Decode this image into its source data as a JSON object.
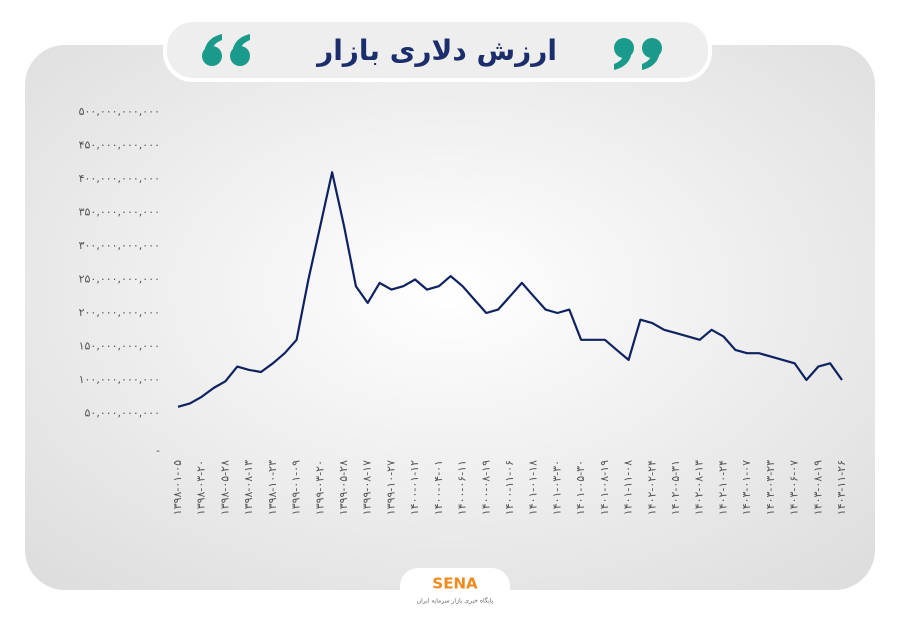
{
  "chart_data": {
    "type": "line",
    "title": "ارزش دلاری بازار",
    "categories": [
      "۱۳۹۸-۰۱-۰۵",
      null,
      "۱۳۹۸-۰۳-۲۰",
      null,
      "۱۳۹۸-۰۵-۲۸",
      null,
      "۱۳۹۸-۰۸-۱۳",
      null,
      "۱۳۹۸-۱۰-۲۳",
      null,
      "۱۳۹۹-۰۱-۰۹",
      null,
      "۱۳۹۹-۰۳-۲۰",
      null,
      "۱۳۹۹-۰۵-۲۸",
      null,
      "۱۳۹۹-۰۸-۱۷",
      null,
      "۱۳۹۹-۱۰-۲۷",
      null,
      "۱۴۰۰-۰۱-۱۲",
      null,
      "۱۴۰۰-۰۴-۰۱",
      null,
      "۱۴۰۰-۰۶-۱۱",
      null,
      "۱۴۰۰-۰۸-۱۹",
      null,
      "۱۴۰۰-۱۱-۰۶",
      null,
      "۱۴۰۱-۰۱-۱۸",
      null,
      "۱۴۰۱-۰۳-۳۰",
      null,
      "۱۴۰۱-۰۵-۳۰",
      null,
      "۱۴۰۱-۰۸-۱۹",
      null,
      "۱۴۰۱-۱۱-۰۸",
      null,
      "۱۴۰۲-۰۲-۲۴",
      null,
      "۱۴۰۲-۰۵-۳۱",
      null,
      "۱۴۰۲-۰۸-۱۳",
      null,
      "۱۴۰۲-۱۰-۲۴",
      null,
      "۱۴۰۳-۰۱-۰۷",
      null,
      "۱۴۰۳-۰۳-۲۳",
      null,
      "۱۴۰۳-۰۶-۰۷",
      null,
      "۱۴۰۳-۰۸-۱۹",
      null,
      "۱۴۰۳-۱۱-۲۶"
    ],
    "values": [
      60000000000,
      65000000000,
      75000000000,
      88000000000,
      98000000000,
      120000000000,
      115000000000,
      112000000000,
      125000000000,
      140000000000,
      160000000000,
      250000000000,
      330000000000,
      410000000000,
      330000000000,
      240000000000,
      215000000000,
      245000000000,
      235000000000,
      240000000000,
      250000000000,
      235000000000,
      240000000000,
      255000000000,
      240000000000,
      220000000000,
      200000000000,
      205000000000,
      225000000000,
      245000000000,
      225000000000,
      205000000000,
      200000000000,
      205000000000,
      160000000000,
      160000000000,
      160000000000,
      145000000000,
      130000000000,
      190000000000,
      185000000000,
      175000000000,
      170000000000,
      165000000000,
      160000000000,
      175000000000,
      165000000000,
      145000000000,
      140000000000,
      140000000000,
      135000000000,
      130000000000,
      125000000000,
      100000000000,
      120000000000,
      125000000000,
      100000000000
    ],
    "color": "#0f2260",
    "ylim": [
      0,
      500000000000
    ],
    "yticks": [
      {
        "value": 0,
        "label": "-"
      },
      {
        "value": 50000000000,
        "label": "۵۰,۰۰۰,۰۰۰,۰۰۰"
      },
      {
        "value": 100000000000,
        "label": "۱۰۰,۰۰۰,۰۰۰,۰۰۰"
      },
      {
        "value": 150000000000,
        "label": "۱۵۰,۰۰۰,۰۰۰,۰۰۰"
      },
      {
        "value": 200000000000,
        "label": "۲۰۰,۰۰۰,۰۰۰,۰۰۰"
      },
      {
        "value": 250000000000,
        "label": "۲۵۰,۰۰۰,۰۰۰,۰۰۰"
      },
      {
        "value": 300000000000,
        "label": "۳۰۰,۰۰۰,۰۰۰,۰۰۰"
      },
      {
        "value": 350000000000,
        "label": "۳۵۰,۰۰۰,۰۰۰,۰۰۰"
      },
      {
        "value": 400000000000,
        "label": "۴۰۰,۰۰۰,۰۰۰,۰۰۰"
      },
      {
        "value": 450000000000,
        "label": "۴۵۰,۰۰۰,۰۰۰,۰۰۰"
      },
      {
        "value": 500000000000,
        "label": "۵۰۰,۰۰۰,۰۰۰,۰۰۰"
      }
    ],
    "grid": false
  },
  "logo": {
    "name": "SENA",
    "tagline": "پایگاه خبری بازار سرمایه ایران"
  }
}
